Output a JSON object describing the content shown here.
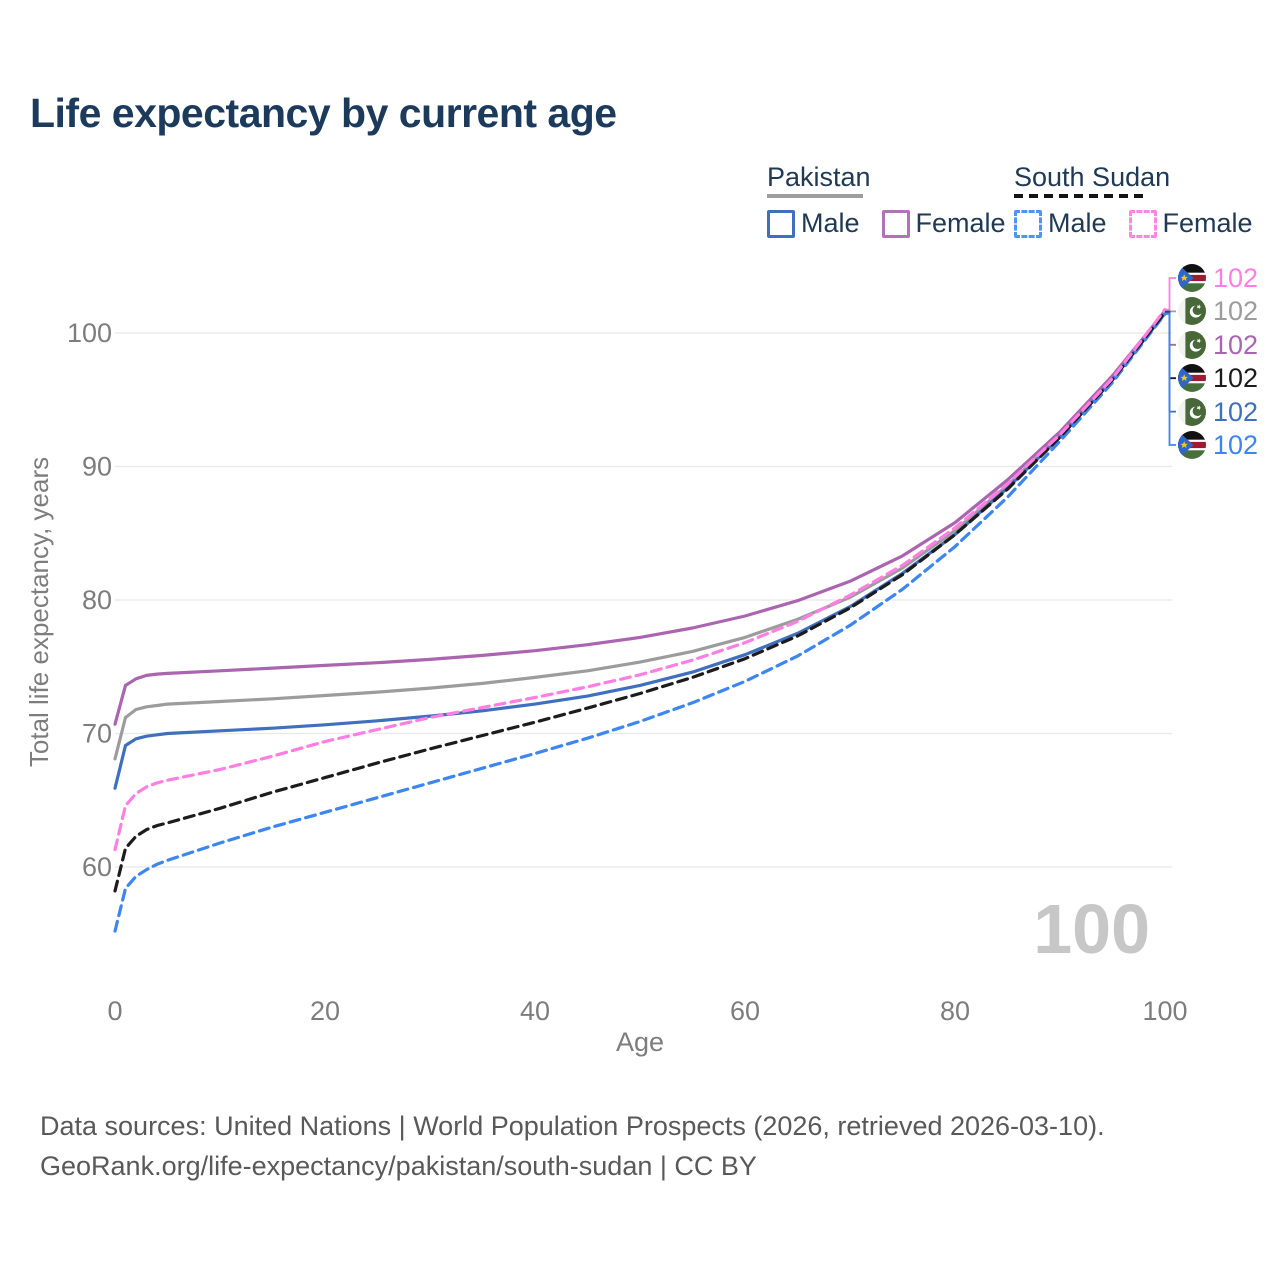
{
  "title": "Life expectancy by current age",
  "watermark": "100",
  "legend": {
    "groups": [
      {
        "country": "Pakistan",
        "underline_style": "solid",
        "underline_color": "#9e9e9e",
        "items": [
          {
            "label": "Male",
            "color": "#3f6fbe",
            "dashed": false
          },
          {
            "label": "Female",
            "color": "#b173b8",
            "dashed": false
          }
        ]
      },
      {
        "country": "South Sudan",
        "underline_style": "dashed",
        "underline_color": "#141414",
        "items": [
          {
            "label": "Male",
            "color": "#4d94f7",
            "dashed": true
          },
          {
            "label": "Female",
            "color": "#ff85e2",
            "dashed": true
          }
        ]
      }
    ]
  },
  "chart_data": {
    "type": "line",
    "title": "Life expectancy by current age",
    "xlabel": "Age",
    "ylabel": "Total life expectancy, years",
    "xlim": [
      0,
      100
    ],
    "ylim": [
      54,
      102.5
    ],
    "xticks": [
      0,
      20,
      40,
      60,
      80,
      100
    ],
    "yticks": [
      60,
      70,
      80,
      90,
      100
    ],
    "grid": "horizontal-only",
    "legend_position": "top-right",
    "x_ages": [
      0,
      1,
      2,
      3,
      4,
      5,
      10,
      15,
      20,
      25,
      30,
      35,
      40,
      45,
      50,
      55,
      60,
      65,
      70,
      75,
      80,
      85,
      90,
      95,
      100
    ],
    "series": [
      {
        "name": "Pakistan Both sexes",
        "country": "Pakistan",
        "sex": "Both",
        "color": "#9c9c9c",
        "dashed": false,
        "values": [
          68.1,
          71.2,
          71.8,
          72.0,
          72.1,
          72.2,
          72.4,
          72.6,
          72.85,
          73.1,
          73.4,
          73.75,
          74.2,
          74.7,
          75.35,
          76.15,
          77.2,
          78.55,
          80.2,
          82.4,
          85.2,
          88.6,
          92.3,
          96.6,
          101.68
        ]
      },
      {
        "name": "Pakistan Female",
        "country": "Pakistan",
        "sex": "Female",
        "color": "#ab64b0",
        "dashed": false,
        "values": [
          70.7,
          73.6,
          74.1,
          74.35,
          74.45,
          74.5,
          74.7,
          74.9,
          75.1,
          75.3,
          75.55,
          75.85,
          76.2,
          76.65,
          77.2,
          77.9,
          78.8,
          79.95,
          81.4,
          83.3,
          85.8,
          89.0,
          92.6,
          96.8,
          101.62
        ]
      },
      {
        "name": "Pakistan Male",
        "country": "Pakistan",
        "sex": "Male",
        "color": "#3f6fbe",
        "dashed": false,
        "values": [
          65.9,
          69.1,
          69.6,
          69.8,
          69.9,
          70.0,
          70.2,
          70.4,
          70.65,
          70.95,
          71.3,
          71.7,
          72.2,
          72.8,
          73.6,
          74.6,
          75.9,
          77.5,
          79.5,
          82.0,
          84.9,
          88.4,
          92.2,
          96.5,
          101.48
        ]
      },
      {
        "name": "South Sudan Male",
        "country": "South Sudan",
        "sex": "Male",
        "color": "#3e86ef",
        "dashed": true,
        "values": [
          55.2,
          58.4,
          59.3,
          59.8,
          60.2,
          60.5,
          61.8,
          63.0,
          64.1,
          65.2,
          66.3,
          67.4,
          68.5,
          69.65,
          70.9,
          72.3,
          73.9,
          75.8,
          78.1,
          80.8,
          84.0,
          87.7,
          91.9,
          96.3,
          101.42
        ]
      },
      {
        "name": "South Sudan Both sexes",
        "country": "South Sudan",
        "sex": "Both",
        "color": "#1c1c1c",
        "dashed": true,
        "values": [
          58.2,
          61.4,
          62.3,
          62.8,
          63.1,
          63.3,
          64.4,
          65.6,
          66.7,
          67.8,
          68.85,
          69.85,
          70.85,
          71.9,
          73.0,
          74.2,
          75.6,
          77.3,
          79.4,
          81.9,
          84.9,
          88.3,
          92.2,
          96.5,
          101.55
        ]
      },
      {
        "name": "South Sudan Female",
        "country": "South Sudan",
        "sex": "Female",
        "color": "#ff7ee3",
        "dashed": true,
        "values": [
          61.3,
          64.6,
          65.5,
          66.0,
          66.3,
          66.5,
          67.3,
          68.3,
          69.4,
          70.3,
          71.2,
          71.95,
          72.7,
          73.5,
          74.4,
          75.5,
          76.8,
          78.4,
          80.35,
          82.6,
          85.4,
          88.7,
          92.4,
          96.6,
          101.75
        ]
      }
    ],
    "end_labels": [
      {
        "series": "South Sudan Female",
        "flag": "south-sudan",
        "value": "102",
        "color": "#ff7ee3"
      },
      {
        "series": "Pakistan Both sexes",
        "flag": "pakistan",
        "value": "102",
        "color": "#9c9c9c"
      },
      {
        "series": "Pakistan Female",
        "flag": "pakistan",
        "value": "102",
        "color": "#ab64b0"
      },
      {
        "series": "South Sudan Both sexes",
        "flag": "south-sudan",
        "value": "102",
        "color": "#1c1c1c"
      },
      {
        "series": "Pakistan Male",
        "flag": "pakistan",
        "value": "102",
        "color": "#3f6fbe"
      },
      {
        "series": "South Sudan Male",
        "flag": "south-sudan",
        "value": "102",
        "color": "#3e86ef"
      }
    ]
  },
  "footer": {
    "line1": "Data sources: United Nations | World Population Prospects (2026, retrieved 2026-03-10).",
    "line2": "GeoRank.org/life-expectancy/pakistan/south-sudan | CC BY"
  }
}
